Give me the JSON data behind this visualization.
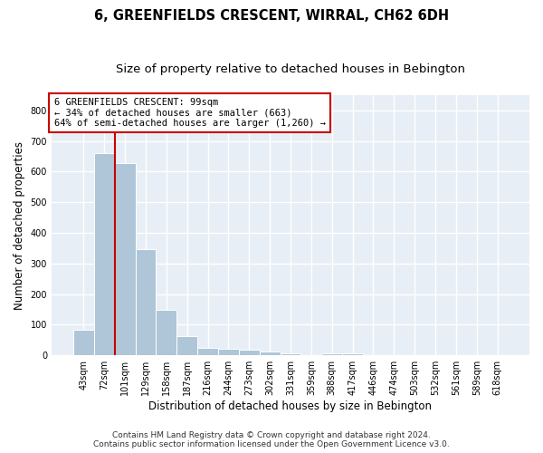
{
  "title": "6, GREENFIELDS CRESCENT, WIRRAL, CH62 6DH",
  "subtitle": "Size of property relative to detached houses in Bebington",
  "xlabel": "Distribution of detached houses by size in Bebington",
  "ylabel": "Number of detached properties",
  "categories": [
    "43sqm",
    "72sqm",
    "101sqm",
    "129sqm",
    "158sqm",
    "187sqm",
    "216sqm",
    "244sqm",
    "273sqm",
    "302sqm",
    "331sqm",
    "359sqm",
    "388sqm",
    "417sqm",
    "446sqm",
    "474sqm",
    "503sqm",
    "532sqm",
    "561sqm",
    "589sqm",
    "618sqm"
  ],
  "values": [
    83,
    660,
    627,
    348,
    148,
    62,
    24,
    20,
    17,
    11,
    6,
    0,
    8,
    8,
    0,
    0,
    0,
    0,
    0,
    0,
    0
  ],
  "bar_color": "#aec6d8",
  "highlight_line_color": "#cc0000",
  "annotation_line1": "6 GREENFIELDS CRESCENT: 99sqm",
  "annotation_line2": "← 34% of detached houses are smaller (663)",
  "annotation_line3": "64% of semi-detached houses are larger (1,260) →",
  "annotation_box_facecolor": "#ffffff",
  "annotation_box_edgecolor": "#cc0000",
  "ylim": [
    0,
    850
  ],
  "yticks": [
    0,
    100,
    200,
    300,
    400,
    500,
    600,
    700,
    800
  ],
  "background_color": "#e8eef5",
  "grid_color": "#ffffff",
  "footer_line1": "Contains HM Land Registry data © Crown copyright and database right 2024.",
  "footer_line2": "Contains public sector information licensed under the Open Government Licence v3.0.",
  "title_fontsize": 10.5,
  "subtitle_fontsize": 9.5,
  "xlabel_fontsize": 8.5,
  "ylabel_fontsize": 8.5,
  "tick_fontsize": 7,
  "annotation_fontsize": 7.5,
  "footer_fontsize": 6.5,
  "highlight_line_xindex": 1.5
}
